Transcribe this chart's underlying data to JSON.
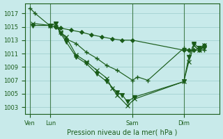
{
  "background_color": "#c8eaea",
  "grid_color": "#a8d4d4",
  "line_color": "#1a5c1a",
  "ylim": [
    1002.0,
    1018.5
  ],
  "yticks": [
    1003,
    1005,
    1007,
    1009,
    1011,
    1013,
    1015,
    1017
  ],
  "xlabel": "Pression niveau de la mer( hPa )",
  "xtick_labels": [
    "Ven",
    "Lun",
    "Sam",
    "Dim"
  ],
  "xtick_pos": [
    0,
    2,
    10,
    15
  ],
  "xlim": [
    -0.5,
    18.5
  ],
  "vline_pos": [
    0,
    2,
    10,
    15
  ],
  "series": [
    {
      "x": [
        0,
        0.5,
        2,
        2.5,
        3.5,
        4.5,
        5.5,
        6.5,
        7.5,
        8.5,
        10,
        10.5,
        11.5,
        15,
        15.5,
        16,
        16.5,
        17
      ],
      "y": [
        1017.8,
        1017.0,
        1015.1,
        1015.1,
        1013.2,
        1012.5,
        1011.2,
        1010.3,
        1009.2,
        1008.5,
        1007.0,
        1007.5,
        1007.0,
        1011.8,
        1011.5,
        1011.5,
        1011.8,
        1011.5
      ],
      "marker": "+",
      "ms": 5,
      "mew": 1.0
    },
    {
      "x": [
        0.3,
        2,
        2.5,
        3.0,
        3.5,
        4.5,
        5.5,
        6.5,
        7.5,
        8.0,
        8.5,
        9.5,
        10.2,
        15,
        15.5,
        16,
        16.5,
        17
      ],
      "y": [
        1015.5,
        1015.2,
        1015.5,
        1014.2,
        1013.5,
        1010.8,
        1009.8,
        1008.5,
        1007.3,
        1005.8,
        1004.8,
        1003.2,
        1004.2,
        1006.8,
        1009.8,
        1012.2,
        1011.5,
        1012.2
      ],
      "marker": "x",
      "ms": 4,
      "mew": 0.9
    },
    {
      "x": [
        0.3,
        2,
        2.5,
        3.0,
        3.5,
        4.5,
        5.5,
        6.5,
        7.5,
        8.5,
        9.0,
        9.5,
        10.2,
        15,
        15.5,
        16,
        16.5,
        17
      ],
      "y": [
        1015.2,
        1015.2,
        1015.5,
        1014.0,
        1012.8,
        1010.5,
        1009.5,
        1008.0,
        1006.8,
        1005.2,
        1004.8,
        1003.8,
        1004.5,
        1006.8,
        1010.5,
        1012.5,
        1011.8,
        1011.8
      ],
      "marker": "v",
      "ms": 4,
      "mew": 0.8
    },
    {
      "x": [
        2,
        2.5,
        3,
        4,
        5,
        6,
        7,
        8,
        9,
        10,
        15,
        15.5,
        16,
        16.5,
        17
      ],
      "y": [
        1015.2,
        1015.0,
        1014.8,
        1014.5,
        1014.2,
        1013.8,
        1013.5,
        1013.2,
        1013.0,
        1013.0,
        1011.5,
        1011.5,
        1011.5,
        1011.5,
        1012.2
      ],
      "marker": "D",
      "ms": 3,
      "mew": 0.7
    }
  ]
}
